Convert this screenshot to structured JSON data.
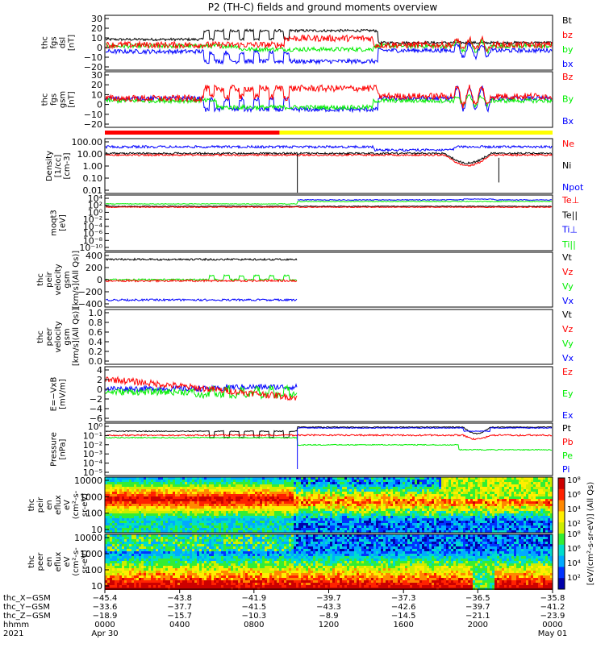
{
  "title": "P2 (TH-C) fields and ground moments overview",
  "colors": {
    "black": "#000000",
    "red": "#ff0000",
    "green": "#00ee00",
    "blue": "#0000ff",
    "yellow": "#ffff00"
  },
  "chart_data": {
    "type": "line",
    "panels": [
      {
        "id": "fgs-dsl",
        "ylabel": [
          "thc",
          "fgs",
          "dsl",
          "[nT]"
        ],
        "yticks": [
          "30",
          "20",
          "10",
          "0",
          "−10",
          "−20"
        ],
        "ylim": [
          -20,
          30
        ],
        "legend": [
          {
            "text": "Bt",
            "color": "#000000"
          },
          {
            "text": "bz",
            "color": "#ff0000"
          },
          {
            "text": "by",
            "color": "#00ee00"
          },
          {
            "text": "bx",
            "color": "#0000ff"
          }
        ]
      },
      {
        "id": "fgs-gsm",
        "ylabel": [
          "thc",
          "fgs",
          "gsm",
          "[nT]"
        ],
        "yticks": [
          "30",
          "20",
          "10",
          "0",
          "−10",
          "−20"
        ],
        "ylim": [
          -20,
          30
        ],
        "legend": [
          {
            "text": "Bz",
            "color": "#ff0000"
          },
          {
            "text": "By",
            "color": "#00ee00"
          },
          {
            "text": "Bx",
            "color": "#0000ff"
          }
        ]
      },
      {
        "id": "mode-bar",
        "segments": [
          {
            "from": 0,
            "to": 0.39,
            "color": "#ff0000"
          },
          {
            "from": 0.39,
            "to": 1,
            "color": "#ffff00"
          }
        ]
      },
      {
        "id": "density",
        "ylabel": [
          "Density",
          "[1/cc]",
          "[cm-3]"
        ],
        "yticks": [
          "100.00",
          "10.00",
          "1.00",
          "0.10",
          "0.01"
        ],
        "ylim": [
          0.005,
          200
        ],
        "log": true,
        "legend": [
          {
            "text": "Ne",
            "color": "#ff0000"
          },
          {
            "text": "Ni",
            "color": "#000000"
          },
          {
            "text": "Npot",
            "color": "#0000ff"
          }
        ]
      },
      {
        "id": "temperature",
        "ylabel": [
          "moqt3",
          "[eV]"
        ],
        "yticks": [
          "10⁴",
          "10²",
          "10⁰",
          "10⁻²",
          "10⁻⁴",
          "10⁻⁶",
          "10⁻⁸",
          "10⁻¹⁰"
        ],
        "ylim": [
          1e-10,
          10000.0
        ],
        "log": true,
        "legend": [
          {
            "text": "Te⊥",
            "color": "#ff0000"
          },
          {
            "text": "Te||",
            "color": "#000000"
          },
          {
            "text": "Ti⊥",
            "color": "#0000ff"
          },
          {
            "text": "Ti||",
            "color": "#00ee00"
          }
        ]
      },
      {
        "id": "peir-velocity",
        "ylabel": [
          "thc",
          "peir",
          "velocity",
          "gsm",
          "[km/s](All Qs)]"
        ],
        "yticks": [
          "400",
          "200",
          "0",
          "−200",
          "−400"
        ],
        "ylim": [
          -400,
          400
        ],
        "legend": [
          {
            "text": "Vt",
            "color": "#000000"
          },
          {
            "text": "Vz",
            "color": "#ff0000"
          },
          {
            "text": "Vy",
            "color": "#00ee00"
          },
          {
            "text": "Vx",
            "color": "#0000ff"
          }
        ]
      },
      {
        "id": "peer-velocity",
        "ylabel": [
          "thc",
          "peer",
          "velocity",
          "gsm",
          "[km/s](All Qs)]"
        ],
        "yticks": [
          "1.0",
          "0.8",
          "0.6",
          "0.4",
          "0.2",
          "0.0"
        ],
        "ylim": [
          0,
          1
        ],
        "legend": [
          {
            "text": "Vt",
            "color": "#000000"
          },
          {
            "text": "Vz",
            "color": "#ff0000"
          },
          {
            "text": "Vy",
            "color": "#00ee00"
          },
          {
            "text": "Vx",
            "color": "#0000ff"
          }
        ]
      },
      {
        "id": "efield",
        "ylabel": [
          "E=−VxB",
          "[mV/m]"
        ],
        "yticks": [
          "4",
          "2",
          "0",
          "−2",
          "−4",
          "−6"
        ],
        "ylim": [
          -6,
          4
        ],
        "legend": [
          {
            "text": "Ez",
            "color": "#ff0000"
          },
          {
            "text": "Ey",
            "color": "#00ee00"
          },
          {
            "text": "Ex",
            "color": "#0000ff"
          }
        ]
      },
      {
        "id": "pressure",
        "ylabel": [
          "Pressure",
          "[nPa]"
        ],
        "yticks": [
          "10⁰",
          "10⁻¹",
          "10⁻²",
          "10⁻³",
          "10⁻⁴",
          "10⁻⁵"
        ],
        "ylim": [
          1e-06,
          3
        ],
        "log": true,
        "legend": [
          {
            "text": "Pt",
            "color": "#000000"
          },
          {
            "text": "Pb",
            "color": "#ff0000"
          },
          {
            "text": "Pe",
            "color": "#00ee00"
          },
          {
            "text": "Pi",
            "color": "#0000ff"
          }
        ]
      },
      {
        "id": "peir-spec",
        "type": "heatmap",
        "ylabel": [
          "thc",
          "peir",
          "en",
          "eflux",
          "eV",
          "(cm²-s-",
          "sr-eV)"
        ],
        "yticks": [
          "10000",
          "1000",
          "100",
          "10"
        ],
        "ylim": [
          5,
          25000
        ],
        "log": true
      },
      {
        "id": "peer-spec",
        "type": "heatmap",
        "ylabel": [
          "thc",
          "peer",
          "en",
          "eflux",
          "eV",
          "(cm²-s-",
          "sr-eV)"
        ],
        "yticks": [
          "10000",
          "1000",
          "100",
          "10"
        ],
        "ylim": [
          5,
          25000
        ],
        "log": true
      }
    ],
    "colorbar": {
      "label": "[eV/(cm²-s-sr-eV)] (All Qs)",
      "ticks": [
        "10⁸",
        "10⁶",
        "10⁴",
        "10²"
      ]
    },
    "xaxis": {
      "rows": [
        {
          "label": "thc_X−GSM",
          "values": [
            "−45.4",
            "−43.8",
            "−41.9",
            "−39.7",
            "−37.3",
            "−36.5",
            "−35.8"
          ]
        },
        {
          "label": "thc_Y−GSM",
          "values": [
            "−33.6",
            "−37.7",
            "−41.5",
            "−43.3",
            "−42.6",
            "−39.7",
            "−41.2"
          ]
        },
        {
          "label": "thc_Z−GSM",
          "values": [
            "−18.9",
            "−15.7",
            "−10.3",
            "−8.9",
            "−14.5",
            "−21.1",
            "−23.9"
          ]
        },
        {
          "label": "hhmm",
          "values": [
            "0000",
            "0400",
            "0800",
            "1200",
            "1600",
            "2000",
            "0000"
          ]
        }
      ],
      "year": "2021",
      "date_start": "Apr 30",
      "date_end": "May 01"
    }
  }
}
